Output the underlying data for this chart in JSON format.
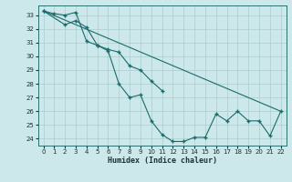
{
  "xlabel": "Humidex (Indice chaleur)",
  "bg_color": "#cce8ea",
  "grid_color": "#aacccc",
  "line_color": "#1a6b6b",
  "xlim": [
    -0.5,
    22.5
  ],
  "ylim": [
    23.5,
    33.7
  ],
  "yticks": [
    24,
    25,
    26,
    27,
    28,
    29,
    30,
    31,
    32,
    33
  ],
  "xticks": [
    0,
    1,
    2,
    3,
    4,
    5,
    6,
    7,
    8,
    9,
    10,
    11,
    12,
    13,
    14,
    15,
    16,
    17,
    18,
    19,
    20,
    21,
    22
  ],
  "line1_x": [
    0,
    1,
    2,
    3,
    4,
    5,
    6,
    7,
    8,
    9,
    10,
    11,
    12,
    13,
    14,
    15,
    16,
    17,
    18,
    19,
    20,
    21,
    22
  ],
  "line1_y": [
    33.3,
    33.1,
    33.0,
    33.2,
    31.1,
    30.8,
    30.4,
    28.0,
    27.0,
    27.2,
    25.3,
    24.3,
    23.8,
    23.8,
    24.1,
    24.1,
    25.8,
    25.3,
    26.0,
    25.3,
    25.3,
    24.2,
    26.0
  ],
  "line2_x": [
    0,
    2,
    3,
    4,
    5,
    6,
    7,
    8,
    9,
    10,
    11
  ],
  "line2_y": [
    33.3,
    32.3,
    32.6,
    32.1,
    30.8,
    30.5,
    30.3,
    29.3,
    29.0,
    28.2,
    27.5
  ],
  "line3_x": [
    0,
    22
  ],
  "line3_y": [
    33.3,
    26.0
  ]
}
